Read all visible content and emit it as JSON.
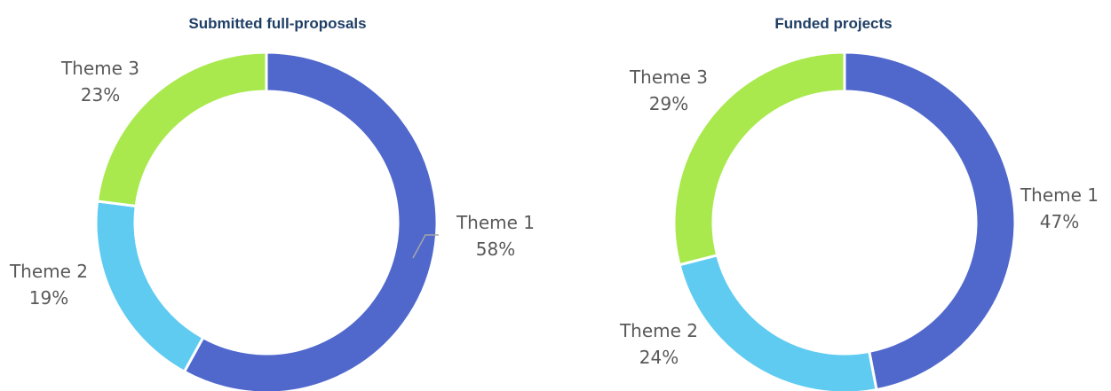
{
  "chart_data": [
    {
      "type": "pie",
      "title": "Submitted full-proposals",
      "labels": [
        "Theme 1",
        "Theme 2",
        "Theme 3"
      ],
      "values": [
        58,
        19,
        23
      ],
      "value_labels": [
        "58%",
        "19%",
        "23%"
      ],
      "colors": [
        "#5068CC",
        "#5FCBF1",
        "#A9E94E"
      ],
      "hole": "donut",
      "start_angle_deg": 0,
      "direction": "clockwise"
    },
    {
      "type": "pie",
      "title": "Funded projects",
      "labels": [
        "Theme 1",
        "Theme 2",
        "Theme 3"
      ],
      "values": [
        47,
        24,
        29
      ],
      "value_labels": [
        "47%",
        "24%",
        "29%"
      ],
      "colors": [
        "#5068CC",
        "#5FCBF1",
        "#A9E94E"
      ],
      "hole": "donut",
      "start_angle_deg": 0,
      "direction": "clockwise"
    }
  ]
}
